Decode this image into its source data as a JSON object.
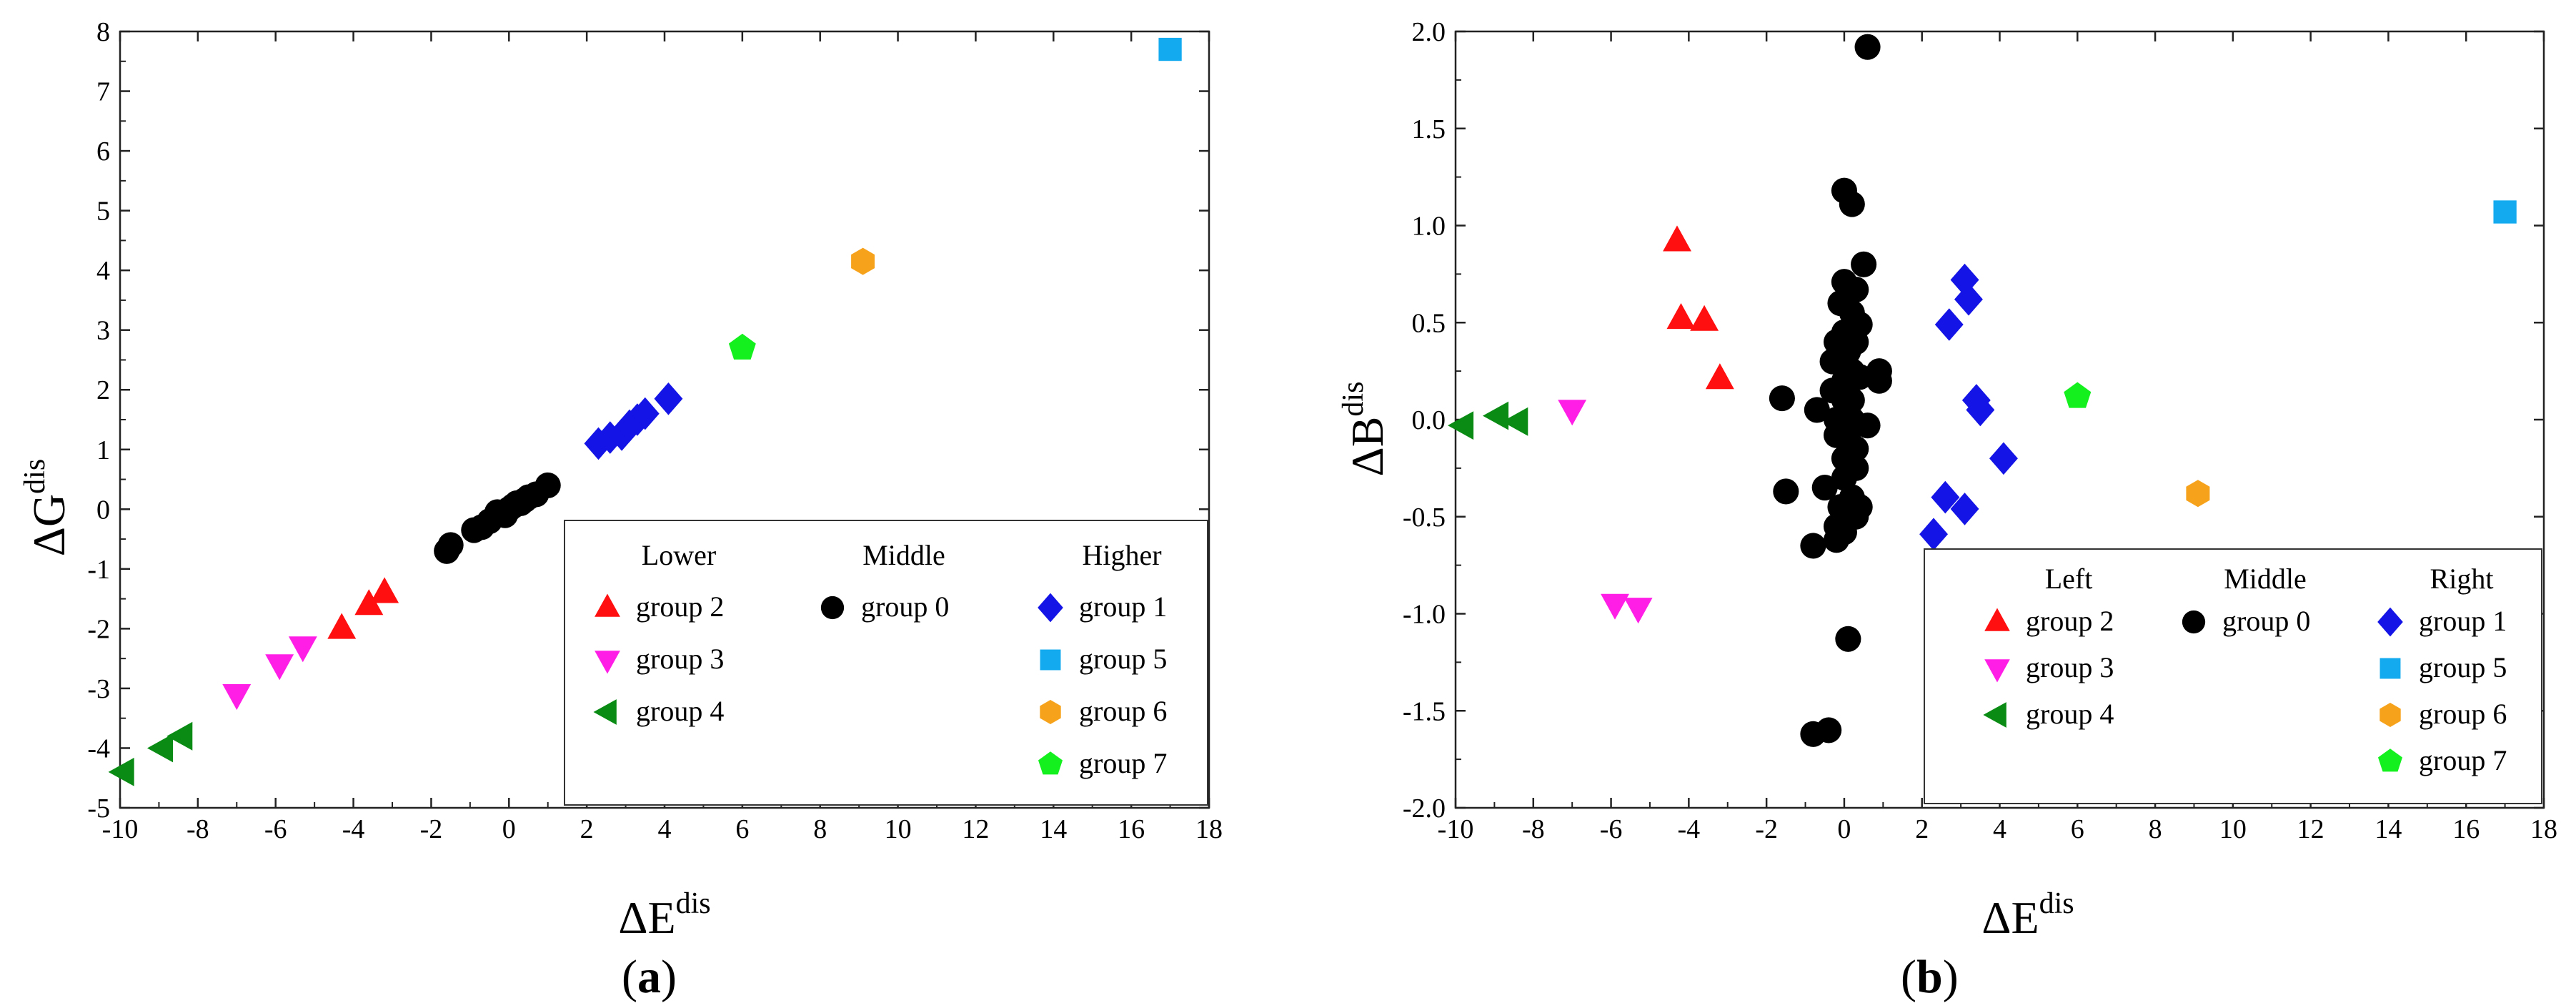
{
  "colors": {
    "group0": "#000000",
    "group1": "#1414e6",
    "group2": "#ff0f0f",
    "group3": "#ff1ee6",
    "group4": "#0a8c14",
    "group5": "#13aaf0",
    "group6": "#f7a21b",
    "group7": "#14f01e"
  },
  "chart_data": [
    {
      "type": "scatter",
      "panel_label": "a",
      "xlabel": "ΔE",
      "xlabel_sup": "dis",
      "ylabel": "ΔG",
      "ylabel_sup": "dis",
      "xlim": [
        -10,
        18
      ],
      "ylim": [
        -5,
        8
      ],
      "xticks": [
        "-10",
        "-8",
        "-6",
        "-4",
        "-2",
        "0",
        "2",
        "4",
        "6",
        "8",
        "10",
        "12",
        "14",
        "16",
        "18"
      ],
      "yticks": [
        "-5",
        "-4",
        "-3",
        "-2",
        "-1",
        "0",
        "1",
        "2",
        "3",
        "4",
        "5",
        "6",
        "7",
        "8"
      ],
      "legend": {
        "location": "bottom-right",
        "headers": [
          "Lower",
          "Middle",
          "Higher"
        ],
        "columns": [
          [
            "group 2",
            "group 3",
            "group 4"
          ],
          [
            "group 0"
          ],
          [
            "group 1",
            "group 5",
            "group 6",
            "group 7"
          ]
        ]
      },
      "series": [
        {
          "name": "group 0",
          "marker": "circle",
          "color_key": "group0",
          "x": [
            -1.6,
            -1.5,
            -0.9,
            -0.7,
            -0.5,
            -0.3,
            -0.1,
            0.0,
            0.1,
            0.2,
            0.3,
            0.4,
            0.5,
            0.7,
            1.0
          ],
          "y": [
            -0.7,
            -0.6,
            -0.35,
            -0.3,
            -0.2,
            -0.05,
            -0.1,
            0.0,
            0.05,
            0.1,
            0.1,
            0.15,
            0.2,
            0.25,
            0.4
          ]
        },
        {
          "name": "group 1",
          "marker": "diamond",
          "color_key": "group1",
          "x": [
            2.3,
            2.6,
            2.9,
            3.1,
            3.3,
            3.5,
            4.1
          ],
          "y": [
            1.1,
            1.2,
            1.25,
            1.4,
            1.5,
            1.6,
            1.85
          ]
        },
        {
          "name": "group 2",
          "marker": "triangle-up",
          "color_key": "group2",
          "x": [
            -4.3,
            -3.6,
            -3.2
          ],
          "y": [
            -2.0,
            -1.6,
            -1.4
          ]
        },
        {
          "name": "group 3",
          "marker": "triangle-down",
          "color_key": "group3",
          "x": [
            -7.0,
            -5.9,
            -5.3
          ],
          "y": [
            -3.1,
            -2.6,
            -2.3
          ]
        },
        {
          "name": "group 4",
          "marker": "triangle-left",
          "color_key": "group4",
          "x": [
            -9.9,
            -8.9,
            -8.4
          ],
          "y": [
            -4.4,
            -4.0,
            -3.8
          ]
        },
        {
          "name": "group 5",
          "marker": "square",
          "color_key": "group5",
          "x": [
            17.0
          ],
          "y": [
            7.7
          ]
        },
        {
          "name": "group 6",
          "marker": "hexagon",
          "color_key": "group6",
          "x": [
            9.1
          ],
          "y": [
            4.15
          ]
        },
        {
          "name": "group 7",
          "marker": "pentagon",
          "color_key": "group7",
          "x": [
            6.0
          ],
          "y": [
            2.7
          ]
        }
      ]
    },
    {
      "type": "scatter",
      "panel_label": "b",
      "xlabel": "ΔE",
      "xlabel_sup": "dis",
      "ylabel": "ΔB",
      "ylabel_sup": "dis",
      "xlim": [
        -10,
        18
      ],
      "ylim": [
        -2.0,
        2.0
      ],
      "xticks": [
        "-10",
        "-8",
        "-6",
        "-4",
        "-2",
        "0",
        "2",
        "4",
        "6",
        "8",
        "10",
        "12",
        "14",
        "16",
        "18"
      ],
      "yticks": [
        "-2.0",
        "-1.5",
        "-1.0",
        "-0.5",
        "0.0",
        "0.5",
        "1.0",
        "1.5",
        "2.0"
      ],
      "legend": {
        "location": "bottom-right",
        "headers": [
          "Left",
          "Middle",
          "Right"
        ],
        "columns": [
          [
            "group 2",
            "group 3",
            "group 4"
          ],
          [
            "group 0"
          ],
          [
            "group 1",
            "group 5",
            "group 6",
            "group 7"
          ]
        ]
      },
      "series": [
        {
          "name": "group 0",
          "marker": "circle",
          "color_key": "group0",
          "x": [
            0.6,
            0.0,
            0.2,
            0.5,
            0.0,
            0.3,
            -0.1,
            0.2,
            0.4,
            0.0,
            -0.2,
            0.1,
            0.3,
            0.0,
            0.2,
            -0.3,
            0.4,
            0.9,
            0.9,
            -1.6,
            -0.7,
            0.0,
            -0.3,
            0.1,
            0.2,
            0.6,
            0.0,
            -0.2,
            0.1,
            0.3,
            0.0,
            -1.5,
            -0.5,
            0.0,
            0.3,
            0.2,
            -0.1,
            0.1,
            0.4,
            -0.2,
            0.3,
            -0.8,
            -0.2,
            0.0,
            -0.8,
            -0.4,
            0.1,
            -0.2,
            0.0,
            0.2
          ],
          "y": [
            1.92,
            1.18,
            1.11,
            0.8,
            0.71,
            0.67,
            0.6,
            0.55,
            0.49,
            0.45,
            0.4,
            0.35,
            0.4,
            0.3,
            0.25,
            0.3,
            0.22,
            0.25,
            0.2,
            0.11,
            0.05,
            0.1,
            0.15,
            0.08,
            0.0,
            -0.03,
            -0.05,
            -0.08,
            -0.1,
            -0.15,
            -0.2,
            -0.37,
            -0.35,
            -0.3,
            -0.25,
            -0.4,
            -0.45,
            -0.5,
            -0.45,
            -0.55,
            -0.5,
            -0.65,
            -0.62,
            -0.58,
            -1.62,
            -1.6,
            -1.13,
            0.0,
            0.2,
            0.1
          ]
        },
        {
          "name": "group 1",
          "marker": "diamond",
          "color_key": "group1",
          "x": [
            3.1,
            3.2,
            2.7,
            3.4,
            3.5,
            4.1,
            2.6,
            3.1,
            2.3
          ],
          "y": [
            0.72,
            0.62,
            0.49,
            0.1,
            0.05,
            -0.2,
            -0.4,
            -0.46,
            -0.59
          ]
        },
        {
          "name": "group 2",
          "marker": "triangle-up",
          "color_key": "group2",
          "x": [
            -4.3,
            -4.2,
            -3.6,
            -3.2
          ],
          "y": [
            0.92,
            0.52,
            0.51,
            0.21
          ]
        },
        {
          "name": "group 3",
          "marker": "triangle-down",
          "color_key": "group3",
          "x": [
            -7.0,
            -5.9,
            -5.3
          ],
          "y": [
            0.05,
            -0.95,
            -0.97
          ]
        },
        {
          "name": "group 4",
          "marker": "triangle-left",
          "color_key": "group4",
          "x": [
            -9.8,
            -8.9,
            -8.4
          ],
          "y": [
            -0.03,
            0.02,
            -0.01
          ]
        },
        {
          "name": "group 5",
          "marker": "square",
          "color_key": "group5",
          "x": [
            17.0
          ],
          "y": [
            1.07
          ]
        },
        {
          "name": "group 6",
          "marker": "hexagon",
          "color_key": "group6",
          "x": [
            9.1
          ],
          "y": [
            -0.38
          ]
        },
        {
          "name": "group 7",
          "marker": "pentagon",
          "color_key": "group7",
          "x": [
            6.0
          ],
          "y": [
            0.12
          ]
        }
      ]
    }
  ]
}
